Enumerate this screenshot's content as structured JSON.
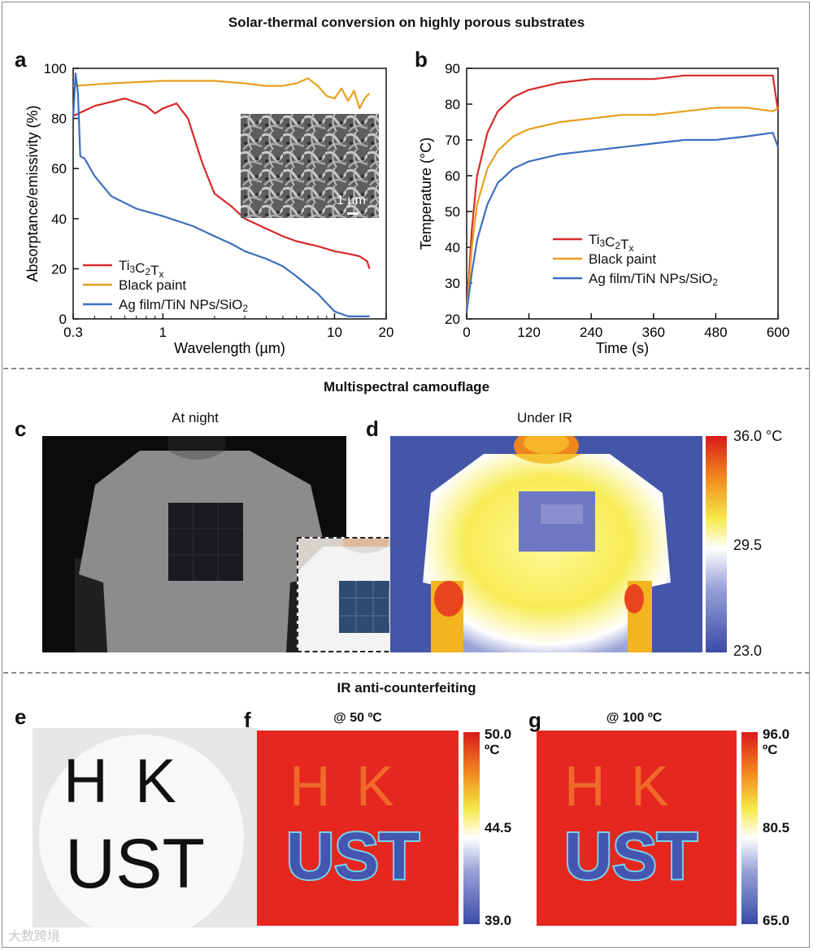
{
  "figure": {
    "section_titles": {
      "solar": "Solar-thermal conversion on highly porous substrates",
      "camouflage": "Multispectral camouflage",
      "anticounterfeit": "IR anti-counterfeiting"
    },
    "panels": {
      "a": "a",
      "b": "b",
      "c": "c",
      "d": "d",
      "e": "e",
      "f": "f",
      "g": "g"
    },
    "subtitles": {
      "c": "At night",
      "d": "Under IR",
      "f": "@ 50 ºC",
      "g": "@ 100 ºC"
    },
    "scale_bar": "1 µm",
    "colorbars": {
      "d": {
        "max": "36.0 °C",
        "mid": "29.5",
        "min": "23.0"
      },
      "f": {
        "max": "50.0",
        "unit": "ºC",
        "mid": "44.5",
        "min": "39.0"
      },
      "g": {
        "max": "96.0",
        "unit": "ºC",
        "mid": "80.5",
        "min": "65.0"
      }
    },
    "sample_text": {
      "line1": "H K",
      "line2": "UST"
    },
    "watermark": "大数跨境"
  },
  "chart_data": [
    {
      "type": "line",
      "panel": "a",
      "xlabel": "Wavelength (µm)",
      "ylabel": "Absorptance/emissivity (%)",
      "xscale": "log",
      "xlim": [
        0.3,
        20
      ],
      "ylim": [
        0,
        100
      ],
      "xticks": [
        "0.3",
        "1",
        "10",
        "20"
      ],
      "yticks": [
        "0",
        "20",
        "40",
        "60",
        "80",
        "100"
      ],
      "legend": "bottom-left",
      "series": [
        {
          "name": "Ti3C2Tx",
          "color": "#d62a2a",
          "x": [
            0.3,
            0.4,
            0.6,
            0.8,
            0.9,
            1.0,
            1.2,
            1.4,
            1.7,
            2.0,
            2.5,
            3,
            4,
            5,
            6,
            8,
            10,
            12,
            14,
            15.5,
            16
          ],
          "y": [
            81,
            85,
            88,
            85,
            82,
            84,
            86,
            80,
            62,
            50,
            45,
            40,
            36,
            33,
            31,
            29,
            27,
            26,
            25,
            23,
            20
          ]
        },
        {
          "name": "Black paint",
          "color": "#e8a020",
          "x": [
            0.3,
            0.5,
            1,
            2,
            3,
            4,
            5,
            6,
            7,
            8,
            9,
            10,
            11,
            12,
            13,
            14,
            15,
            16
          ],
          "y": [
            93,
            94,
            95,
            95,
            94,
            93,
            93,
            94,
            96,
            93,
            89,
            88,
            92,
            87,
            91,
            84,
            88,
            90
          ]
        },
        {
          "name": "Ag film/TiN NPs/SiO2",
          "color": "#3c6fbf",
          "x": [
            0.3,
            0.31,
            0.32,
            0.33,
            0.35,
            0.4,
            0.5,
            0.7,
            1.0,
            1.5,
            2.0,
            2.5,
            3,
            4,
            5,
            6,
            8,
            10,
            12,
            14,
            16
          ],
          "y": [
            80,
            98,
            90,
            65,
            64,
            57,
            49,
            44,
            41,
            37,
            33,
            30,
            27,
            24,
            21,
            17,
            10,
            3,
            1,
            1,
            1
          ]
        }
      ]
    },
    {
      "type": "line",
      "panel": "b",
      "xlabel": "Time (s)",
      "ylabel": "Temperature (°C)",
      "xlim": [
        0,
        600
      ],
      "ylim": [
        20,
        90
      ],
      "xticks": [
        "0",
        "120",
        "240",
        "360",
        "480",
        "600"
      ],
      "yticks": [
        "20",
        "30",
        "40",
        "50",
        "60",
        "70",
        "80",
        "90"
      ],
      "legend": "bottom-right",
      "series": [
        {
          "name": "Ti3C2Tx",
          "color": "#d62a2a",
          "x": [
            0,
            10,
            20,
            40,
            60,
            90,
            120,
            180,
            240,
            300,
            360,
            420,
            480,
            540,
            590,
            600
          ],
          "y": [
            22,
            45,
            60,
            72,
            78,
            82,
            84,
            86,
            87,
            87,
            87,
            88,
            88,
            88,
            88,
            78
          ]
        },
        {
          "name": "Black paint",
          "color": "#e8a020",
          "x": [
            0,
            10,
            20,
            40,
            60,
            90,
            120,
            180,
            240,
            300,
            360,
            420,
            480,
            540,
            590,
            600
          ],
          "y": [
            22,
            40,
            52,
            62,
            67,
            71,
            73,
            75,
            76,
            77,
            77,
            78,
            79,
            79,
            78,
            79
          ]
        },
        {
          "name": "Ag film/TiN NPs/SiO2",
          "color": "#3c6fbf",
          "x": [
            0,
            10,
            20,
            40,
            60,
            90,
            120,
            180,
            240,
            300,
            360,
            420,
            480,
            540,
            590,
            600
          ],
          "y": [
            22,
            33,
            42,
            52,
            58,
            62,
            64,
            66,
            67,
            68,
            69,
            70,
            70,
            71,
            72,
            68
          ]
        }
      ]
    }
  ]
}
